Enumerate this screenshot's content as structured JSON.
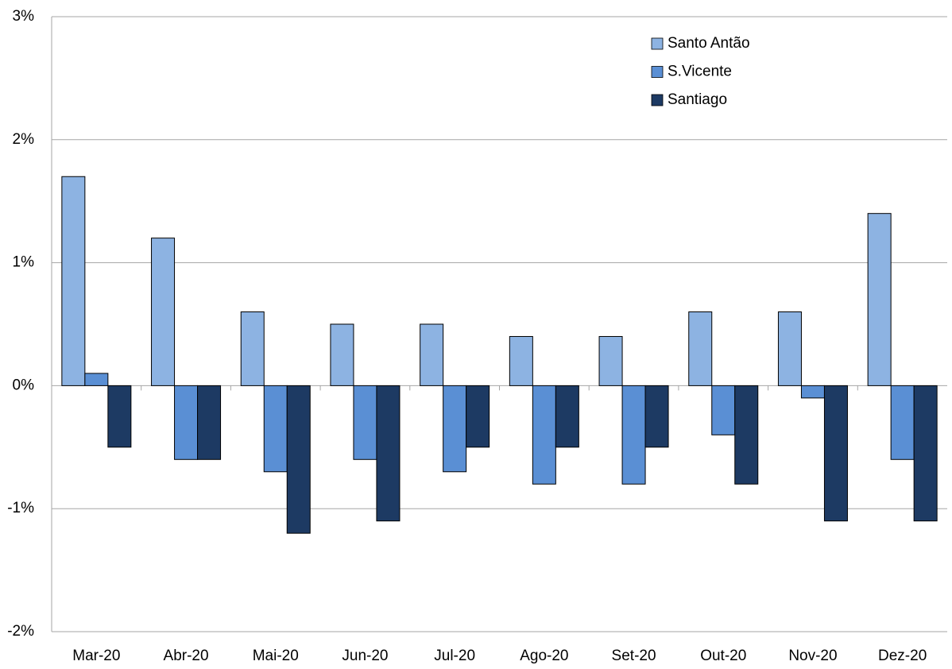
{
  "chart_data": {
    "type": "bar",
    "categories": [
      "Mar-20",
      "Abr-20",
      "Mai-20",
      "Jun-20",
      "Jul-20",
      "Ago-20",
      "Set-20",
      "Out-20",
      "Nov-20",
      "Dez-20"
    ],
    "series": [
      {
        "name": "Santo Antão",
        "color": "#8db3e2",
        "values": [
          1.7,
          1.2,
          0.6,
          0.5,
          0.5,
          0.4,
          0.4,
          0.6,
          0.6,
          1.4
        ]
      },
      {
        "name": "S.Vicente",
        "color": "#5a8fd4",
        "values": [
          0.1,
          -0.6,
          -0.7,
          -0.6,
          -0.7,
          -0.8,
          -0.8,
          -0.4,
          -0.1,
          -0.6
        ]
      },
      {
        "name": "Santiago",
        "color": "#1d3a63",
        "values": [
          -0.5,
          -0.6,
          -1.2,
          -1.1,
          -0.5,
          -0.5,
          -0.5,
          -0.8,
          -1.1,
          -1.1
        ]
      }
    ],
    "ylim": [
      -2,
      3
    ],
    "yticks": [
      {
        "value": -2,
        "label": "-2%"
      },
      {
        "value": -1,
        "label": "-1%"
      },
      {
        "value": 0,
        "label": "0%"
      },
      {
        "value": 1,
        "label": "1%"
      },
      {
        "value": 2,
        "label": "2%"
      },
      {
        "value": 3,
        "label": "3%"
      }
    ],
    "grid": true,
    "legend": "top-right"
  }
}
